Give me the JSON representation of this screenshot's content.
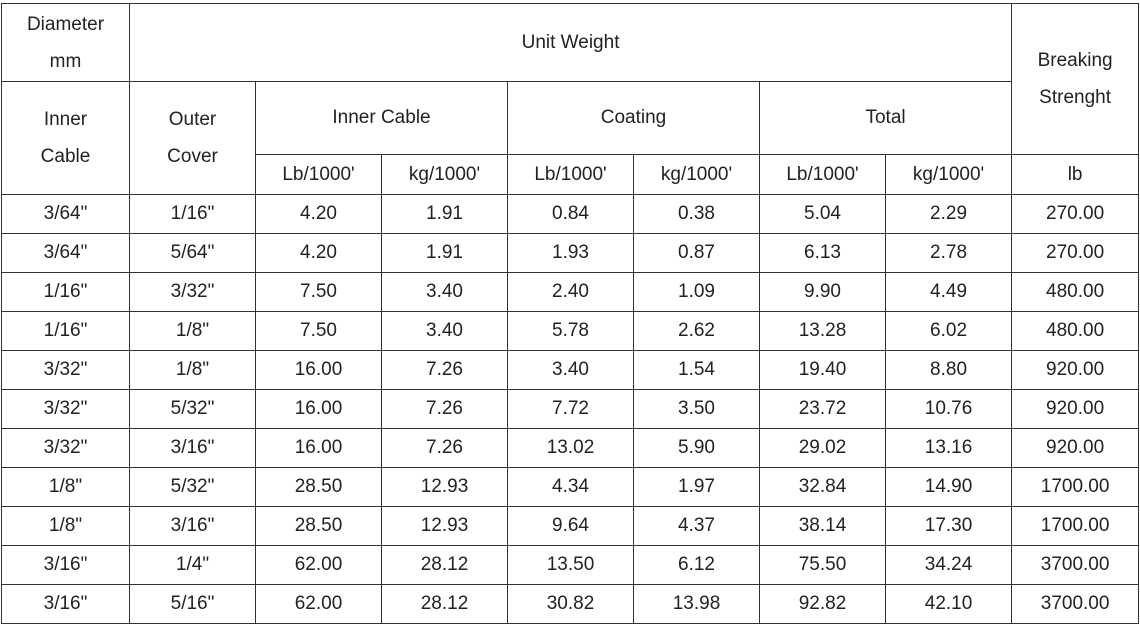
{
  "header": {
    "diameter": "Diameter mm",
    "unit_weight": "Unit Weight",
    "breaking": "Breaking Strenght",
    "inner": "Inner Cable",
    "outer": "Outer Cover",
    "inner_cable": "Inner Cable",
    "coating": "Coating",
    "total": "Total",
    "units": [
      "Lb/1000'",
      "kg/1000'",
      "Lb/1000'",
      "kg/1000'",
      "Lb/1000'",
      "kg/1000'",
      "lb"
    ]
  },
  "table": {
    "rows": [
      [
        "3/64\"",
        "1/16\"",
        "4.20",
        "1.91",
        "0.84",
        "0.38",
        "5.04",
        "2.29",
        "270.00"
      ],
      [
        "3/64\"",
        "5/64\"",
        "4.20",
        "1.91",
        "1.93",
        "0.87",
        "6.13",
        "2.78",
        "270.00"
      ],
      [
        "1/16\"",
        "3/32\"",
        "7.50",
        "3.40",
        "2.40",
        "1.09",
        "9.90",
        "4.49",
        "480.00"
      ],
      [
        "1/16\"",
        "1/8\"",
        "7.50",
        "3.40",
        "5.78",
        "2.62",
        "13.28",
        "6.02",
        "480.00"
      ],
      [
        "3/32\"",
        "1/8\"",
        "16.00",
        "7.26",
        "3.40",
        "1.54",
        "19.40",
        "8.80",
        "920.00"
      ],
      [
        "3/32\"",
        "5/32\"",
        "16.00",
        "7.26",
        "7.72",
        "3.50",
        "23.72",
        "10.76",
        "920.00"
      ],
      [
        "3/32\"",
        "3/16\"",
        "16.00",
        "7.26",
        "13.02",
        "5.90",
        "29.02",
        "13.16",
        "920.00"
      ],
      [
        "1/8\"",
        "5/32\"",
        "28.50",
        "12.93",
        "4.34",
        "1.97",
        "32.84",
        "14.90",
        "1700.00"
      ],
      [
        "1/8\"",
        "3/16\"",
        "28.50",
        "12.93",
        "9.64",
        "4.37",
        "38.14",
        "17.30",
        "1700.00"
      ],
      [
        "3/16\"",
        "1/4\"",
        "62.00",
        "28.12",
        "13.50",
        "6.12",
        "75.50",
        "34.24",
        "3700.00"
      ],
      [
        "3/16\"",
        "5/16\"",
        "62.00",
        "28.12",
        "30.82",
        "13.98",
        "92.82",
        "42.10",
        "3700.00"
      ]
    ]
  }
}
